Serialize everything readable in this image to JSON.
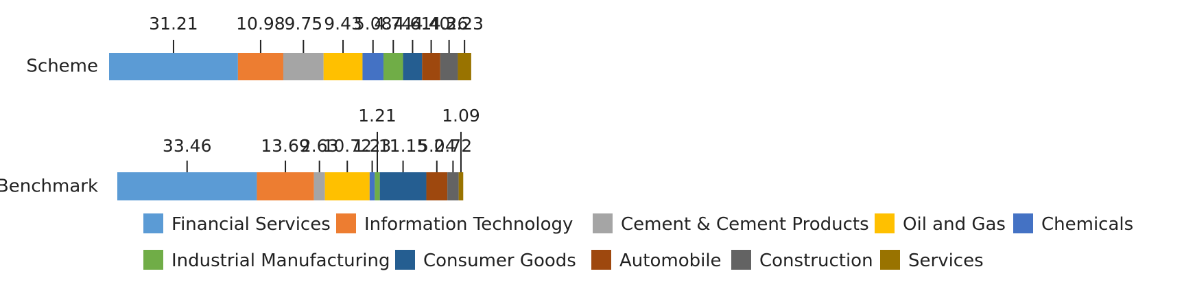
{
  "chart_data": {
    "type": "bar",
    "orientation": "horizontal",
    "stacked": true,
    "categories": [
      "Scheme",
      "Benchmark"
    ],
    "series": [
      {
        "name": "Financial Services",
        "color": "#5b9bd5",
        "values": [
          31.21,
          33.46
        ]
      },
      {
        "name": "Information Technology",
        "color": "#ed7d31",
        "values": [
          10.98,
          13.69
        ]
      },
      {
        "name": "Cement & Cement Products",
        "color": "#a5a5a5",
        "values": [
          9.75,
          2.63
        ]
      },
      {
        "name": "Oil and Gas",
        "color": "#ffc000",
        "values": [
          9.43,
          10.72
        ]
      },
      {
        "name": "Chemicals",
        "color": "#4472c4",
        "values": [
          5.08,
          1.23
        ]
      },
      {
        "name": "Industrial Manufacturing",
        "color": "#70ad47",
        "values": [
          4.74,
          1.21
        ]
      },
      {
        "name": "Consumer Goods",
        "color": "#255e91",
        "values": [
          4.61,
          11.15
        ]
      },
      {
        "name": "Automobile",
        "color": "#9e480e",
        "values": [
          4.4,
          5.04
        ]
      },
      {
        "name": "Construction",
        "color": "#636363",
        "values": [
          4.26,
          2.72
        ]
      },
      {
        "name": "Services",
        "color": "#997300",
        "values": [
          3.23,
          1.09
        ]
      }
    ],
    "labels": [
      [
        "31.21",
        "10.98",
        "9.75",
        "9.43",
        "5.08",
        "4.74",
        "4.61",
        "4.40",
        "4.26",
        "3.23"
      ],
      [
        "33.46",
        "13.69",
        "2.63",
        "10.72",
        "1.23",
        "1.21",
        "11.15",
        "5.04",
        "2.72",
        "1.09"
      ]
    ],
    "legend": {
      "position": "bottom"
    },
    "grid": false
  }
}
